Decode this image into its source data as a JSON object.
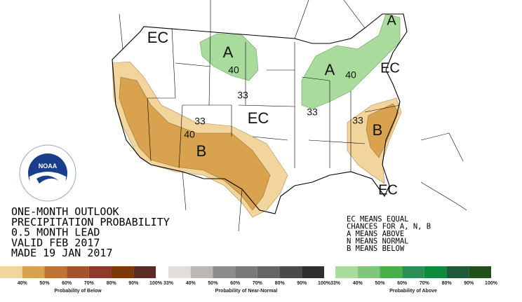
{
  "map": {
    "labels": [
      "EC",
      "A",
      "40",
      "33",
      "EC",
      "A",
      "A",
      "40",
      "EC",
      "33",
      "33",
      "40",
      "B",
      "33",
      "B",
      "EC"
    ]
  },
  "logo": {
    "text": "NOAA"
  },
  "title_block": {
    "lines": [
      "ONE-MONTH OUTLOOK",
      "PRECIPITATION PROBABILITY",
      "0.5 MONTH LEAD",
      "VALID FEB 2017",
      "MADE 19 JAN 2017"
    ]
  },
  "key_block": {
    "lines": [
      "EC MEANS EQUAL",
      "CHANCES FOR A, N, B",
      "A MEANS ABOVE",
      "N MEANS NORMAL",
      "B MEANS BELOW"
    ]
  },
  "legends": [
    {
      "title": "Probability of Below",
      "ticks": [
        "%",
        "40%",
        "50%",
        "60%",
        "70%",
        "80%",
        "90%",
        "100%"
      ],
      "colors": [
        "#f2d59c",
        "#d8a24f",
        "#bd7537",
        "#a2552b",
        "#8e3b2c",
        "#7a3a07",
        "#5b2a25"
      ]
    },
    {
      "title": "Probability of Near-Normal",
      "ticks": [
        "33%",
        "40%",
        "50%",
        "60%",
        "70%",
        "80%",
        "90%",
        "100%"
      ],
      "colors": [
        "#e3dddc",
        "#bab7b5",
        "#8f8d8c",
        "#7a7878",
        "#666565",
        "#4b4a4a",
        "#2f2f30"
      ]
    },
    {
      "title": "Probability of Above",
      "ticks": [
        "33%",
        "40%",
        "50%",
        "60%",
        "70%",
        "80%",
        "90%",
        "100%"
      ],
      "colors": [
        "#a9dc9c",
        "#80c77a",
        "#4aaf48",
        "#2e8f56",
        "#0a8c3a",
        "#1e5a3a",
        "#22501b"
      ]
    }
  ]
}
